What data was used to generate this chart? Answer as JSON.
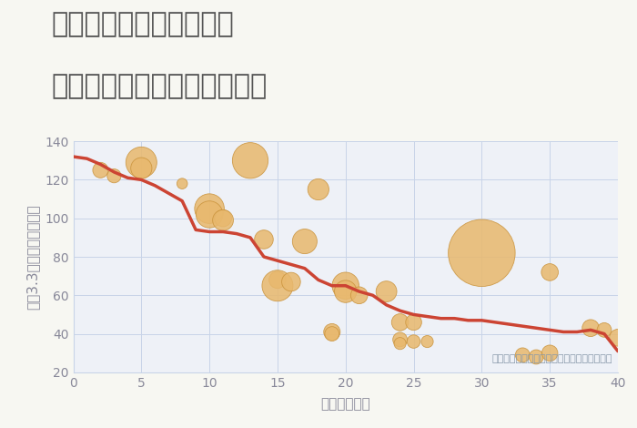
{
  "title_line1": "奈良県奈良市大森西町の",
  "title_line2": "築年数別中古マンション価格",
  "xlabel": "築年数（年）",
  "ylabel": "坪（3.3㎡）単価（万円）",
  "background_color": "#f7f7f2",
  "plot_bg_color": "#eef1f7",
  "xlim": [
    0,
    40
  ],
  "ylim": [
    20,
    140
  ],
  "xticks": [
    0,
    5,
    10,
    15,
    20,
    25,
    30,
    35,
    40
  ],
  "yticks": [
    20,
    40,
    60,
    80,
    100,
    120,
    140
  ],
  "line_x": [
    0,
    1,
    2,
    3,
    4,
    5,
    6,
    7,
    8,
    9,
    10,
    11,
    12,
    13,
    14,
    15,
    16,
    17,
    18,
    19,
    20,
    21,
    22,
    23,
    24,
    25,
    26,
    27,
    28,
    29,
    30,
    31,
    32,
    33,
    34,
    35,
    36,
    37,
    38,
    39,
    40
  ],
  "line_y": [
    132,
    131,
    128,
    124,
    121,
    120,
    117,
    113,
    109,
    94,
    93,
    93,
    92,
    90,
    80,
    78,
    76,
    74,
    68,
    65,
    65,
    62,
    60,
    55,
    52,
    50,
    49,
    48,
    48,
    47,
    47,
    46,
    45,
    44,
    43,
    42,
    41,
    41,
    42,
    40,
    31
  ],
  "line_color": "#cc4433",
  "line_width": 2.5,
  "scatter_x": [
    2,
    3,
    5,
    5,
    8,
    10,
    10,
    11,
    11,
    13,
    14,
    15,
    15,
    16,
    17,
    18,
    19,
    19,
    20,
    20,
    21,
    23,
    24,
    24,
    24,
    25,
    25,
    26,
    30,
    33,
    34,
    35,
    35,
    38,
    39,
    40
  ],
  "scatter_y": [
    125,
    122,
    129,
    126,
    118,
    105,
    102,
    100,
    99,
    130,
    89,
    68,
    65,
    67,
    88,
    115,
    41,
    40,
    65,
    62,
    60,
    62,
    37,
    35,
    46,
    36,
    46,
    36,
    82,
    29,
    28,
    72,
    30,
    43,
    42,
    38
  ],
  "scatter_size": [
    150,
    120,
    600,
    280,
    70,
    550,
    450,
    180,
    270,
    800,
    220,
    180,
    600,
    220,
    380,
    280,
    170,
    130,
    450,
    310,
    180,
    270,
    130,
    90,
    180,
    110,
    160,
    90,
    2800,
    130,
    130,
    180,
    160,
    180,
    130,
    180
  ],
  "scatter_color": "#e8b86d",
  "scatter_alpha": 0.85,
  "scatter_edge": "#c9923a",
  "annotation": "円の大きさは、取引のあった物件面積を示す",
  "annotation_color": "#8899aa",
  "title_color": "#555555",
  "axis_color": "#888899",
  "grid_color": "#c8d4e8",
  "title_fontsize": 22,
  "label_fontsize": 11,
  "tick_fontsize": 10,
  "annotation_fontsize": 8
}
